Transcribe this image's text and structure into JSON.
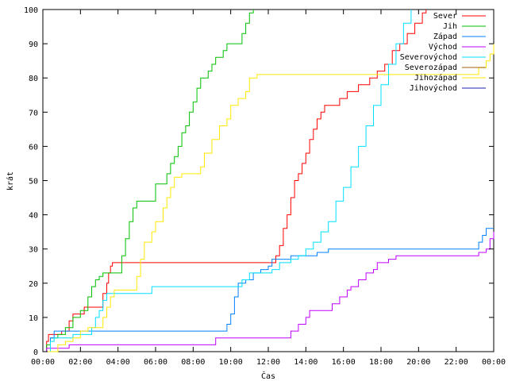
{
  "chart_data": {
    "type": "line",
    "title": "",
    "xlabel": "Čas",
    "ylabel": "krát",
    "xlim": [
      0,
      24
    ],
    "ylim": [
      0,
      100
    ],
    "x_ticks": [
      {
        "value": 0,
        "label": "00:00"
      },
      {
        "value": 2,
        "label": "02:00"
      },
      {
        "value": 4,
        "label": "04:00"
      },
      {
        "value": 6,
        "label": "06:00"
      },
      {
        "value": 8,
        "label": "08:00"
      },
      {
        "value": 10,
        "label": "10:00"
      },
      {
        "value": 12,
        "label": "12:00"
      },
      {
        "value": 14,
        "label": "14:00"
      },
      {
        "value": 16,
        "label": "16:00"
      },
      {
        "value": 18,
        "label": "18:00"
      },
      {
        "value": 20,
        "label": "20:00"
      },
      {
        "value": 22,
        "label": "22:00"
      },
      {
        "value": 24,
        "label": "00:00"
      }
    ],
    "y_ticks": [
      0,
      10,
      20,
      30,
      40,
      50,
      60,
      70,
      80,
      90,
      100
    ],
    "grid": false,
    "legend": "top-right",
    "series": [
      {
        "name": "Sever",
        "color": "#ff0000",
        "points": [
          [
            0,
            0
          ],
          [
            0.2,
            3
          ],
          [
            0.3,
            5
          ],
          [
            1,
            6
          ],
          [
            1.4,
            9
          ],
          [
            1.6,
            11
          ],
          [
            2,
            11
          ],
          [
            2.2,
            13
          ],
          [
            3,
            13
          ],
          [
            3.2,
            17
          ],
          [
            3.4,
            20
          ],
          [
            3.5,
            23
          ],
          [
            3.6,
            25
          ],
          [
            3.7,
            26
          ],
          [
            12.3,
            26
          ],
          [
            12.4,
            28
          ],
          [
            12.5,
            28
          ],
          [
            12.6,
            31
          ],
          [
            12.8,
            36
          ],
          [
            13,
            40
          ],
          [
            13.2,
            45
          ],
          [
            13.4,
            50
          ],
          [
            13.6,
            52
          ],
          [
            13.8,
            55
          ],
          [
            14,
            58
          ],
          [
            14.2,
            62
          ],
          [
            14.4,
            65
          ],
          [
            14.6,
            68
          ],
          [
            14.8,
            70
          ],
          [
            15,
            72
          ],
          [
            15.6,
            72
          ],
          [
            15.8,
            74
          ],
          [
            16.2,
            76
          ],
          [
            16.8,
            78
          ],
          [
            17.4,
            80
          ],
          [
            17.8,
            82
          ],
          [
            18.2,
            84
          ],
          [
            18.6,
            88
          ],
          [
            19,
            90
          ],
          [
            19.4,
            93
          ],
          [
            19.8,
            96
          ],
          [
            20.2,
            99
          ],
          [
            20.4,
            100
          ]
        ]
      },
      {
        "name": "Jih",
        "color": "#00c000",
        "points": [
          [
            0,
            0
          ],
          [
            0.2,
            2
          ],
          [
            0.4,
            4
          ],
          [
            0.8,
            5
          ],
          [
            1.2,
            7
          ],
          [
            1.6,
            10
          ],
          [
            2,
            12
          ],
          [
            2.4,
            16
          ],
          [
            2.6,
            19
          ],
          [
            2.8,
            21
          ],
          [
            3,
            22
          ],
          [
            3.2,
            23
          ],
          [
            4,
            23
          ],
          [
            4.2,
            28
          ],
          [
            4.4,
            33
          ],
          [
            4.6,
            38
          ],
          [
            4.8,
            42
          ],
          [
            5,
            44
          ],
          [
            5.8,
            44
          ],
          [
            6,
            49
          ],
          [
            6.4,
            49
          ],
          [
            6.6,
            52
          ],
          [
            6.8,
            55
          ],
          [
            7,
            57
          ],
          [
            7.2,
            60
          ],
          [
            7.4,
            64
          ],
          [
            7.6,
            66
          ],
          [
            7.8,
            70
          ],
          [
            8,
            73
          ],
          [
            8.2,
            77
          ],
          [
            8.4,
            80
          ],
          [
            8.8,
            82
          ],
          [
            9,
            84
          ],
          [
            9.2,
            86
          ],
          [
            9.6,
            88
          ],
          [
            9.8,
            90
          ],
          [
            10.4,
            90
          ],
          [
            10.6,
            93
          ],
          [
            10.8,
            96
          ],
          [
            11,
            99
          ],
          [
            11.2,
            100
          ]
        ]
      },
      {
        "name": "Západ",
        "color": "#0080ff",
        "points": [
          [
            0,
            0
          ],
          [
            0.4,
            4
          ],
          [
            0.6,
            6
          ],
          [
            4,
            6
          ],
          [
            9.6,
            6
          ],
          [
            9.8,
            8
          ],
          [
            10,
            11
          ],
          [
            10.2,
            16
          ],
          [
            10.4,
            20
          ],
          [
            10.8,
            21
          ],
          [
            11.2,
            23
          ],
          [
            11.6,
            24
          ],
          [
            12,
            25
          ],
          [
            12.2,
            27
          ],
          [
            13.2,
            28
          ],
          [
            14.4,
            28
          ],
          [
            14.6,
            29
          ],
          [
            15.2,
            30
          ],
          [
            23,
            30
          ],
          [
            23.2,
            32
          ],
          [
            23.4,
            34
          ],
          [
            23.6,
            36
          ],
          [
            24,
            36
          ]
        ]
      },
      {
        "name": "Východ",
        "color": "#c000ff",
        "points": [
          [
            0,
            0
          ],
          [
            0.2,
            1
          ],
          [
            1.2,
            1
          ],
          [
            1.4,
            2
          ],
          [
            9,
            2
          ],
          [
            9.2,
            4
          ],
          [
            13,
            4
          ],
          [
            13.2,
            6
          ],
          [
            13.6,
            8
          ],
          [
            14,
            10
          ],
          [
            14.2,
            12
          ],
          [
            15.2,
            12
          ],
          [
            15.4,
            14
          ],
          [
            15.8,
            16
          ],
          [
            16.2,
            18
          ],
          [
            16.4,
            19
          ],
          [
            16.8,
            21
          ],
          [
            17.2,
            23
          ],
          [
            17.6,
            24
          ],
          [
            17.8,
            26
          ],
          [
            18.4,
            27
          ],
          [
            18.8,
            28
          ],
          [
            23,
            28
          ],
          [
            23.2,
            29
          ],
          [
            23.6,
            30
          ],
          [
            23.8,
            33
          ],
          [
            24,
            35
          ]
        ]
      },
      {
        "name": "Severovýchod",
        "color": "#00e0ff",
        "points": [
          [
            0,
            0
          ],
          [
            0.4,
            3
          ],
          [
            0.6,
            4
          ],
          [
            1.4,
            4
          ],
          [
            1.6,
            5
          ],
          [
            2.4,
            5
          ],
          [
            2.6,
            7
          ],
          [
            2.8,
            10
          ],
          [
            3,
            12
          ],
          [
            3.2,
            15
          ],
          [
            3.4,
            17
          ],
          [
            5.6,
            17
          ],
          [
            5.8,
            19
          ],
          [
            8.6,
            19
          ],
          [
            9,
            19
          ],
          [
            10.2,
            19
          ],
          [
            10.6,
            21
          ],
          [
            11,
            23
          ],
          [
            12,
            23
          ],
          [
            12.2,
            24
          ],
          [
            12.6,
            26
          ],
          [
            13,
            26
          ],
          [
            13.2,
            27
          ],
          [
            13.6,
            28
          ],
          [
            14,
            30
          ],
          [
            14.4,
            32
          ],
          [
            14.8,
            35
          ],
          [
            15.2,
            38
          ],
          [
            15.6,
            44
          ],
          [
            16,
            48
          ],
          [
            16.4,
            54
          ],
          [
            16.8,
            60
          ],
          [
            17.2,
            66
          ],
          [
            17.6,
            72
          ],
          [
            18,
            78
          ],
          [
            18.4,
            84
          ],
          [
            18.8,
            90
          ],
          [
            19.2,
            96
          ],
          [
            19.6,
            100
          ]
        ]
      },
      {
        "name": "Severozápad",
        "color": "#a06010",
        "points": []
      },
      {
        "name": "Jihozápad",
        "color": "#ffea00",
        "points": [
          [
            0,
            0
          ],
          [
            0.8,
            2
          ],
          [
            1.2,
            3
          ],
          [
            1.6,
            4
          ],
          [
            2,
            6
          ],
          [
            2.4,
            7
          ],
          [
            3,
            7
          ],
          [
            3.2,
            10
          ],
          [
            3.4,
            13
          ],
          [
            3.6,
            16
          ],
          [
            3.8,
            18
          ],
          [
            4.8,
            18
          ],
          [
            5,
            22
          ],
          [
            5.2,
            27
          ],
          [
            5.4,
            32
          ],
          [
            5.8,
            35
          ],
          [
            6,
            38
          ],
          [
            6.4,
            42
          ],
          [
            6.6,
            45
          ],
          [
            6.8,
            48
          ],
          [
            7,
            51
          ],
          [
            7.4,
            52
          ],
          [
            8,
            52
          ],
          [
            8.4,
            54
          ],
          [
            8.6,
            58
          ],
          [
            9,
            62
          ],
          [
            9.4,
            66
          ],
          [
            9.8,
            68
          ],
          [
            10,
            72
          ],
          [
            10.4,
            74
          ],
          [
            10.8,
            76
          ],
          [
            11,
            80
          ],
          [
            11.4,
            81
          ],
          [
            23,
            81
          ],
          [
            23.2,
            83
          ],
          [
            23.6,
            85
          ],
          [
            23.8,
            87
          ],
          [
            24,
            90
          ]
        ]
      },
      {
        "name": "Jihovýchod",
        "color": "#2020b0",
        "points": []
      }
    ]
  }
}
